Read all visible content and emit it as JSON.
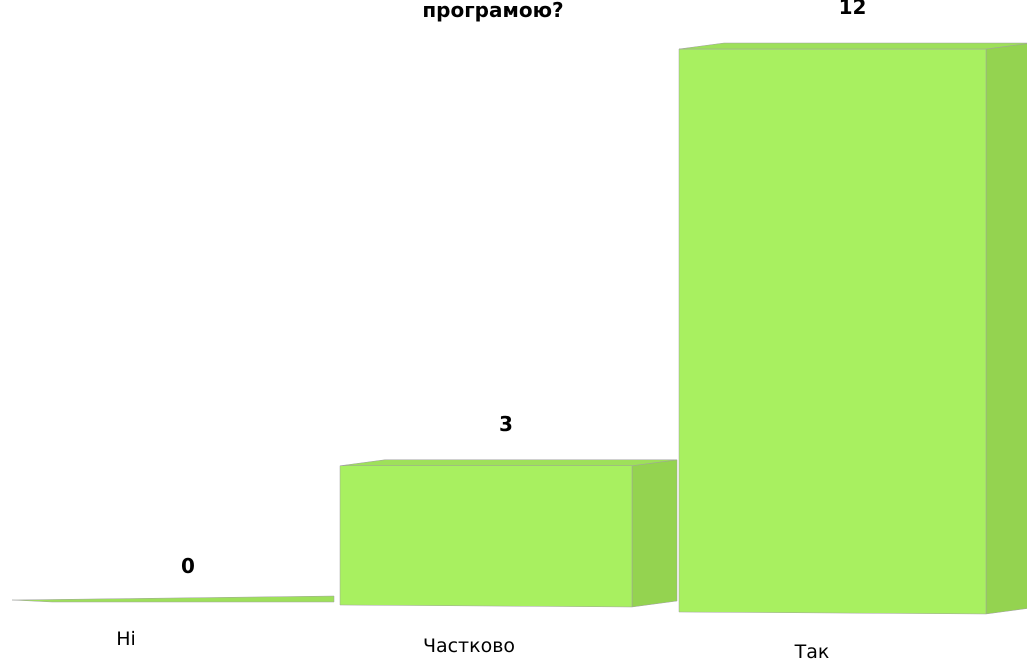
{
  "chart_data": {
    "type": "bar",
    "title": "програмою?",
    "categories": [
      "Ні",
      "Частково",
      "Так"
    ],
    "values": [
      0,
      3,
      12
    ],
    "ylim": [
      0,
      12
    ],
    "grid": false,
    "legend": "none",
    "style": "3d-column"
  },
  "colors": {
    "bar_front": "#a8f060",
    "bar_side": "#94d350",
    "bar_top": "#9ee05a",
    "bar_outline": "#a0a0a0",
    "text": "#000000",
    "background": "#ffffff"
  }
}
